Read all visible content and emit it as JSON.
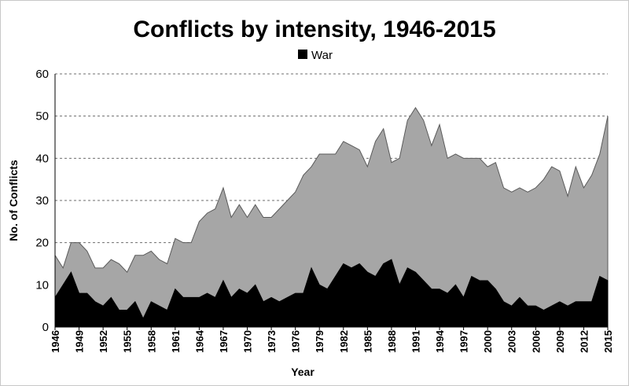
{
  "chart_data": {
    "type": "area",
    "title": "Conflicts by intensity, 1946-2015",
    "xlabel": "Year",
    "ylabel": "No. of Conflicts",
    "ylim": [
      0,
      60
    ],
    "yticks": [
      0,
      10,
      20,
      30,
      40,
      50,
      60
    ],
    "xticks": [
      1946,
      1949,
      1952,
      1955,
      1958,
      1961,
      1964,
      1967,
      1970,
      1973,
      1976,
      1979,
      1982,
      1985,
      1988,
      1991,
      1994,
      1997,
      2000,
      2003,
      2006,
      2009,
      2012,
      2015
    ],
    "grid": "horizontal dashed",
    "legend_position": "top-center",
    "legend": [
      "War"
    ],
    "x": [
      1946,
      1947,
      1948,
      1949,
      1950,
      1951,
      1952,
      1953,
      1954,
      1955,
      1956,
      1957,
      1958,
      1959,
      1960,
      1961,
      1962,
      1963,
      1964,
      1965,
      1966,
      1967,
      1968,
      1969,
      1970,
      1971,
      1972,
      1973,
      1974,
      1975,
      1976,
      1977,
      1978,
      1979,
      1980,
      1981,
      1982,
      1983,
      1984,
      1985,
      1986,
      1987,
      1988,
      1989,
      1990,
      1991,
      1992,
      1993,
      1994,
      1995,
      1996,
      1997,
      1998,
      1999,
      2000,
      2001,
      2002,
      2003,
      2004,
      2005,
      2006,
      2007,
      2008,
      2009,
      2010,
      2011,
      2012,
      2013,
      2014,
      2015
    ],
    "series": [
      {
        "name": "",
        "role": "total",
        "color": "#a6a6a6",
        "values": [
          17,
          14,
          20,
          20,
          18,
          14,
          14,
          16,
          15,
          13,
          17,
          17,
          18,
          16,
          15,
          21,
          20,
          20,
          25,
          27,
          28,
          33,
          26,
          29,
          26,
          29,
          26,
          26,
          28,
          30,
          32,
          36,
          38,
          41,
          41,
          41,
          44,
          43,
          42,
          38,
          44,
          47,
          39,
          40,
          49,
          52,
          49,
          43,
          48,
          40,
          41,
          40,
          40,
          40,
          38,
          39,
          33,
          32,
          33,
          32,
          33,
          35,
          38,
          37,
          31,
          38,
          33,
          36,
          41,
          50
        ]
      },
      {
        "name": "War",
        "role": "war",
        "color": "#000000",
        "values": [
          7,
          10,
          13,
          8,
          8,
          6,
          5,
          7,
          4,
          4,
          6,
          2,
          6,
          5,
          4,
          9,
          7,
          7,
          7,
          8,
          7,
          11,
          7,
          9,
          8,
          10,
          6,
          7,
          6,
          7,
          8,
          8,
          14,
          10,
          9,
          12,
          15,
          14,
          15,
          13,
          12,
          15,
          16,
          10,
          14,
          13,
          11,
          9,
          9,
          8,
          10,
          7,
          12,
          11,
          11,
          9,
          6,
          5,
          7,
          5,
          5,
          4,
          5,
          6,
          5,
          6,
          6,
          6,
          12,
          11
        ]
      }
    ]
  }
}
